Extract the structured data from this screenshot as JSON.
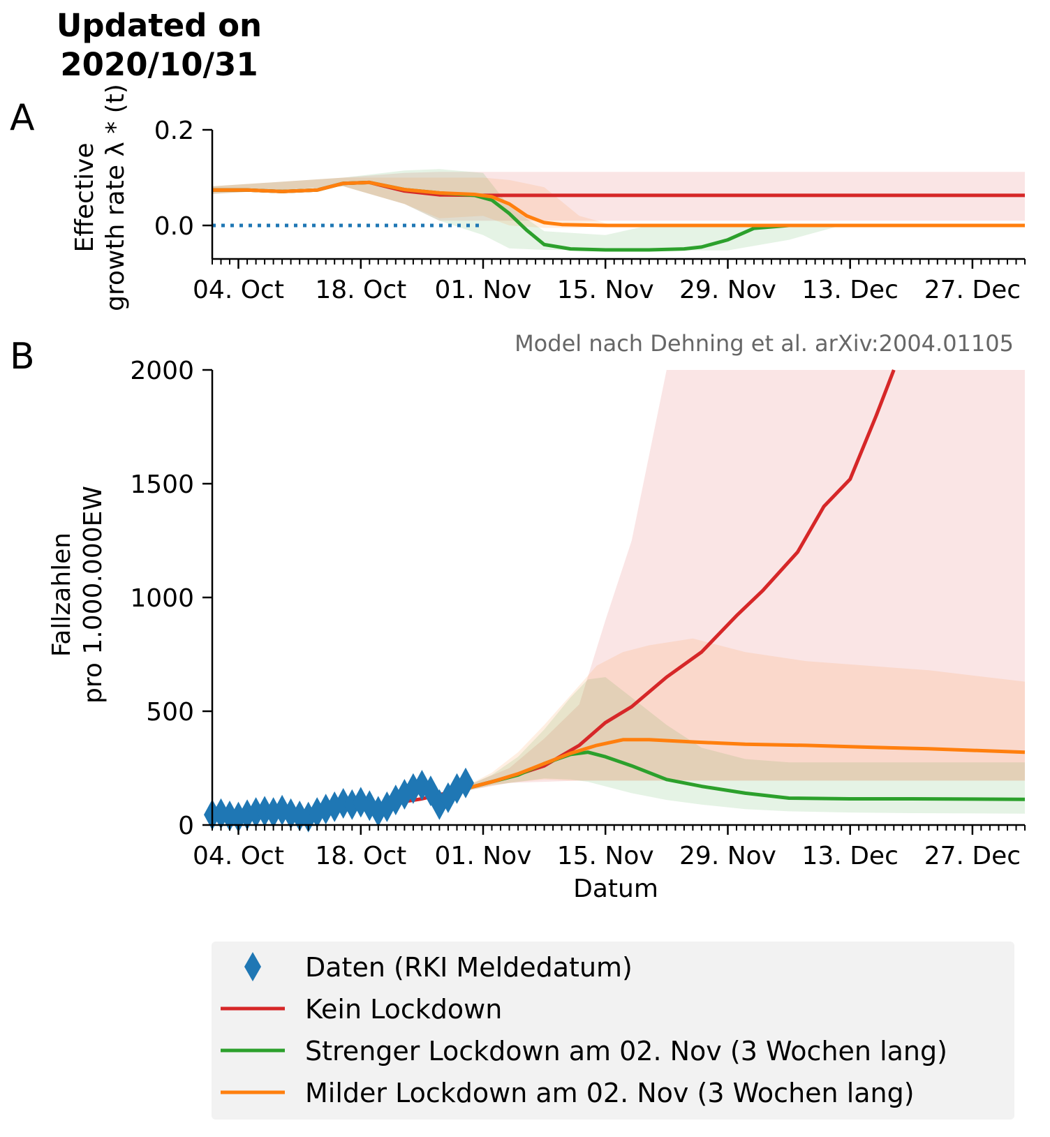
{
  "title_lines": [
    "Updated on",
    "2020/10/31"
  ],
  "panel_labels": [
    "A",
    "B"
  ],
  "note": "Model nach Dehning et al. arXiv:2004.01105",
  "colors": {
    "data": "#1f77b4",
    "kein": "#d62728",
    "streng": "#2ca02c",
    "mild": "#ff7f0e",
    "zero_line": "#1f77b4",
    "note": "#666666",
    "legend_bg": "#f2f2f2"
  },
  "chart_data": [
    {
      "type": "line",
      "panel": "A",
      "ylabel": [
        "Effective",
        "growth rate λ * (t)"
      ],
      "ylim": [
        -0.07,
        0.2
      ],
      "yticks": [
        0.0,
        0.2
      ],
      "ytick_labels": [
        "0.0",
        "0.2"
      ],
      "xlim": [
        "2020-10-01",
        "2021-01-02"
      ],
      "xticks": [
        "2020-10-04",
        "2020-10-18",
        "2020-11-01",
        "2020-11-15",
        "2020-11-29",
        "2020-12-13",
        "2020-12-27"
      ],
      "xtick_labels": [
        "04. Oct",
        "18. Oct",
        "01. Nov",
        "15. Nov",
        "29. Nov",
        "13. Dec",
        "27. Dec"
      ],
      "reference_line": {
        "y": 0,
        "style": "dotted"
      },
      "series": [
        {
          "key": "kein",
          "x": [
            "2020-10-01",
            "2020-10-05",
            "2020-10-09",
            "2020-10-13",
            "2020-10-16",
            "2020-10-19",
            "2020-10-23",
            "2020-10-27",
            "2020-11-01",
            "2021-01-02"
          ],
          "y": [
            0.074,
            0.074,
            0.071,
            0.074,
            0.088,
            0.09,
            0.072,
            0.064,
            0.063,
            0.063
          ],
          "band_x": [
            "2020-10-01",
            "2020-10-16",
            "2020-10-23",
            "2020-10-27",
            "2021-01-02"
          ],
          "band_lo": [
            0.066,
            0.082,
            0.045,
            0.01,
            0.01
          ],
          "band_hi": [
            0.082,
            0.1,
            0.11,
            0.112,
            0.112
          ]
        },
        {
          "key": "streng",
          "x": [
            "2020-10-01",
            "2020-10-05",
            "2020-10-09",
            "2020-10-13",
            "2020-10-16",
            "2020-10-19",
            "2020-10-23",
            "2020-10-27",
            "2020-10-31",
            "2020-11-02",
            "2020-11-04",
            "2020-11-06",
            "2020-11-08",
            "2020-11-11",
            "2020-11-15",
            "2020-11-20",
            "2020-11-24",
            "2020-11-26",
            "2020-11-29",
            "2020-12-02",
            "2020-12-06",
            "2021-01-02"
          ],
          "y": [
            0.074,
            0.074,
            0.071,
            0.074,
            0.088,
            0.09,
            0.075,
            0.068,
            0.063,
            0.053,
            0.025,
            -0.01,
            -0.04,
            -0.049,
            -0.051,
            -0.051,
            -0.049,
            -0.045,
            -0.03,
            -0.006,
            0.0,
            0.0
          ],
          "band_x": [
            "2020-10-01",
            "2020-10-16",
            "2020-10-23",
            "2020-10-27",
            "2020-11-01",
            "2020-11-04",
            "2020-11-08",
            "2020-11-15",
            "2020-11-20",
            "2020-11-29",
            "2020-12-06",
            "2020-12-12",
            "2021-01-02"
          ],
          "band_lo": [
            0.066,
            0.082,
            0.045,
            0.01,
            -0.02,
            -0.048,
            -0.051,
            -0.052,
            -0.052,
            -0.052,
            -0.03,
            0.0,
            0.0
          ],
          "band_hi": [
            0.082,
            0.1,
            0.115,
            0.118,
            0.11,
            0.04,
            -0.012,
            -0.02,
            0.0,
            0.0,
            0.0,
            0.0,
            0.0
          ]
        },
        {
          "key": "mild",
          "x": [
            "2020-10-01",
            "2020-10-05",
            "2020-10-09",
            "2020-10-13",
            "2020-10-16",
            "2020-10-19",
            "2020-10-23",
            "2020-10-27",
            "2020-10-31",
            "2020-11-02",
            "2020-11-04",
            "2020-11-06",
            "2020-11-08",
            "2020-11-10",
            "2020-11-15",
            "2021-01-02"
          ],
          "y": [
            0.074,
            0.074,
            0.071,
            0.074,
            0.088,
            0.09,
            0.075,
            0.068,
            0.065,
            0.06,
            0.045,
            0.02,
            0.006,
            0.002,
            0.0,
            0.0
          ],
          "band_x": [
            "2020-10-01",
            "2020-10-16",
            "2020-10-23",
            "2020-10-27",
            "2020-11-01",
            "2020-11-04",
            "2020-11-08",
            "2020-11-12",
            "2020-11-16",
            "2021-01-02"
          ],
          "band_lo": [
            0.066,
            0.082,
            0.045,
            0.015,
            0.02,
            0.0,
            -0.005,
            -0.005,
            0.0,
            0.0
          ],
          "band_hi": [
            0.082,
            0.1,
            0.1,
            0.1,
            0.1,
            0.095,
            0.08,
            0.02,
            0.0,
            0.0
          ]
        }
      ]
    },
    {
      "type": "line",
      "panel": "B",
      "ylabel": [
        "Fallzahlen",
        "pro 1.000.000EW"
      ],
      "xlabel": "Datum",
      "ylim": [
        0,
        2000
      ],
      "yticks": [
        0,
        500,
        1000,
        1500,
        2000
      ],
      "ytick_labels": [
        "0",
        "500",
        "1000",
        "1500",
        "2000"
      ],
      "xlim": [
        "2020-10-01",
        "2021-01-02"
      ],
      "xticks": [
        "2020-10-04",
        "2020-10-18",
        "2020-11-01",
        "2020-11-15",
        "2020-11-29",
        "2020-12-13",
        "2020-12-27"
      ],
      "xtick_labels": [
        "04. Oct",
        "18. Oct",
        "01. Nov",
        "15. Nov",
        "29. Nov",
        "13. Dec",
        "27. Dec"
      ],
      "data_points": {
        "key": "data",
        "x": [
          "2020-10-01",
          "2020-10-02",
          "2020-10-03",
          "2020-10-04",
          "2020-10-05",
          "2020-10-06",
          "2020-10-07",
          "2020-10-08",
          "2020-10-09",
          "2020-10-10",
          "2020-10-11",
          "2020-10-12",
          "2020-10-13",
          "2020-10-14",
          "2020-10-15",
          "2020-10-16",
          "2020-10-17",
          "2020-10-18",
          "2020-10-19",
          "2020-10-20",
          "2020-10-21",
          "2020-10-22",
          "2020-10-23",
          "2020-10-24",
          "2020-10-25",
          "2020-10-26",
          "2020-10-27",
          "2020-10-28",
          "2020-10-29",
          "2020-10-30"
        ],
        "y": [
          45,
          50,
          40,
          35,
          45,
          55,
          60,
          55,
          65,
          50,
          40,
          35,
          55,
          70,
          80,
          95,
          90,
          100,
          85,
          60,
          80,
          110,
          135,
          160,
          175,
          150,
          90,
          120,
          160,
          185
        ]
      },
      "series": [
        {
          "key": "kein",
          "x": [
            "2020-10-20",
            "2020-10-25",
            "2020-10-30",
            "2020-11-04",
            "2020-11-08",
            "2020-11-12",
            "2020-11-15",
            "2020-11-18",
            "2020-11-22",
            "2020-11-26",
            "2020-11-30",
            "2020-12-03",
            "2020-12-07",
            "2020-12-10",
            "2020-12-13",
            "2020-12-16",
            "2020-12-18"
          ],
          "y": [
            85,
            115,
            160,
            210,
            260,
            350,
            450,
            520,
            650,
            760,
            920,
            1030,
            1200,
            1400,
            1520,
            1800,
            2000
          ],
          "band_x": [
            "2020-10-30",
            "2020-11-04",
            "2020-11-08",
            "2020-11-12",
            "2020-11-15",
            "2020-11-18",
            "2020-11-22",
            "2020-12-01",
            "2020-12-15",
            "2021-01-02"
          ],
          "band_lo": [
            150,
            185,
            190,
            195,
            195,
            195,
            195,
            195,
            195,
            195
          ],
          "band_hi": [
            170,
            250,
            380,
            530,
            900,
            1250,
            2000,
            2000,
            2000,
            2000
          ]
        },
        {
          "key": "streng",
          "x": [
            "2020-10-30",
            "2020-11-02",
            "2020-11-05",
            "2020-11-08",
            "2020-11-11",
            "2020-11-13",
            "2020-11-15",
            "2020-11-18",
            "2020-11-22",
            "2020-11-26",
            "2020-12-01",
            "2020-12-06",
            "2020-12-13",
            "2020-12-20",
            "2021-01-02"
          ],
          "y": [
            160,
            190,
            220,
            270,
            310,
            320,
            300,
            260,
            200,
            170,
            140,
            118,
            115,
            115,
            113
          ],
          "band_x": [
            "2020-10-30",
            "2020-11-02",
            "2020-11-05",
            "2020-11-08",
            "2020-11-11",
            "2020-11-13",
            "2020-11-15",
            "2020-11-18",
            "2020-11-22",
            "2020-11-26",
            "2020-12-01",
            "2020-12-06",
            "2020-12-13",
            "2020-12-20",
            "2021-01-02"
          ],
          "band_lo": [
            150,
            175,
            190,
            205,
            200,
            190,
            170,
            140,
            110,
            90,
            70,
            60,
            55,
            52,
            50
          ],
          "band_hi": [
            170,
            220,
            300,
            420,
            560,
            640,
            650,
            560,
            440,
            340,
            290,
            275,
            275,
            275,
            275
          ]
        },
        {
          "key": "mild",
          "x": [
            "2020-10-30",
            "2020-11-02",
            "2020-11-05",
            "2020-11-08",
            "2020-11-11",
            "2020-11-14",
            "2020-11-17",
            "2020-11-20",
            "2020-11-25",
            "2020-12-01",
            "2020-12-08",
            "2020-12-15",
            "2020-12-22",
            "2021-01-02"
          ],
          "y": [
            160,
            190,
            225,
            270,
            315,
            350,
            375,
            375,
            365,
            355,
            350,
            342,
            335,
            320
          ],
          "band_x": [
            "2020-10-30",
            "2020-11-02",
            "2020-11-05",
            "2020-11-08",
            "2020-11-11",
            "2020-11-14",
            "2020-11-17",
            "2020-11-20",
            "2020-11-25",
            "2020-12-01",
            "2020-12-08",
            "2020-12-15",
            "2020-12-22",
            "2021-01-02"
          ],
          "band_lo": [
            150,
            175,
            190,
            200,
            195,
            195,
            195,
            195,
            195,
            195,
            195,
            195,
            195,
            195
          ],
          "band_hi": [
            170,
            230,
            320,
            440,
            570,
            700,
            760,
            790,
            820,
            760,
            720,
            700,
            680,
            630
          ]
        }
      ]
    }
  ],
  "legend": [
    {
      "key": "data",
      "marker": "diamond",
      "label": "Daten (RKI Meldedatum)"
    },
    {
      "key": "kein",
      "marker": "line",
      "label": "Kein Lockdown"
    },
    {
      "key": "streng",
      "marker": "line",
      "label": "Strenger Lockdown am 02. Nov (3 Wochen lang)"
    },
    {
      "key": "mild",
      "marker": "line",
      "label": "Milder Lockdown am 02. Nov (3 Wochen lang)"
    }
  ]
}
